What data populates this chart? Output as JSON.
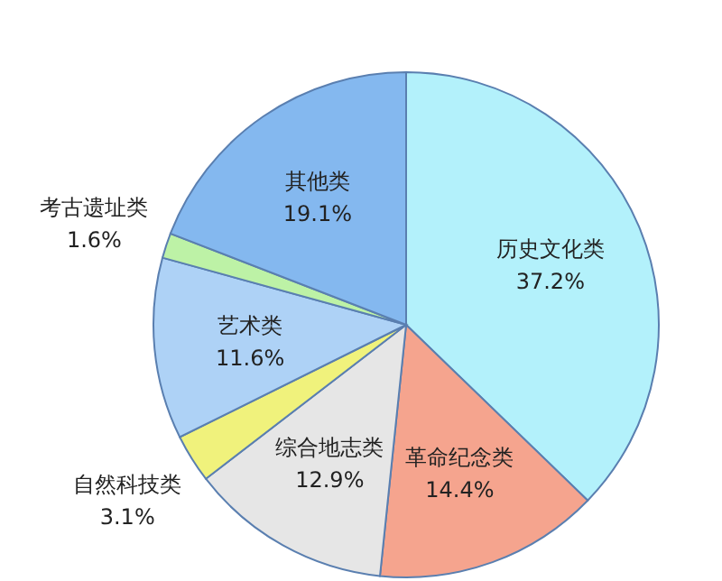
{
  "chart_data": {
    "type": "pie",
    "categories": [
      "历史文化类",
      "革命纪念类",
      "综合地志类",
      "自然科技类",
      "艺术类",
      "考古遗址类",
      "其他类"
    ],
    "values": [
      37.2,
      14.4,
      12.9,
      3.1,
      11.6,
      1.6,
      19.1
    ],
    "colors": [
      "#b3f1fb",
      "#f5a48e",
      "#e6e6e6",
      "#f0f27c",
      "#aed2f6",
      "#bdf2a6",
      "#84b8ef"
    ],
    "value_labels": [
      "37.2%",
      "14.4%",
      "12.9%",
      "3.1%",
      "11.6%",
      "1.6%",
      "19.1%"
    ]
  }
}
